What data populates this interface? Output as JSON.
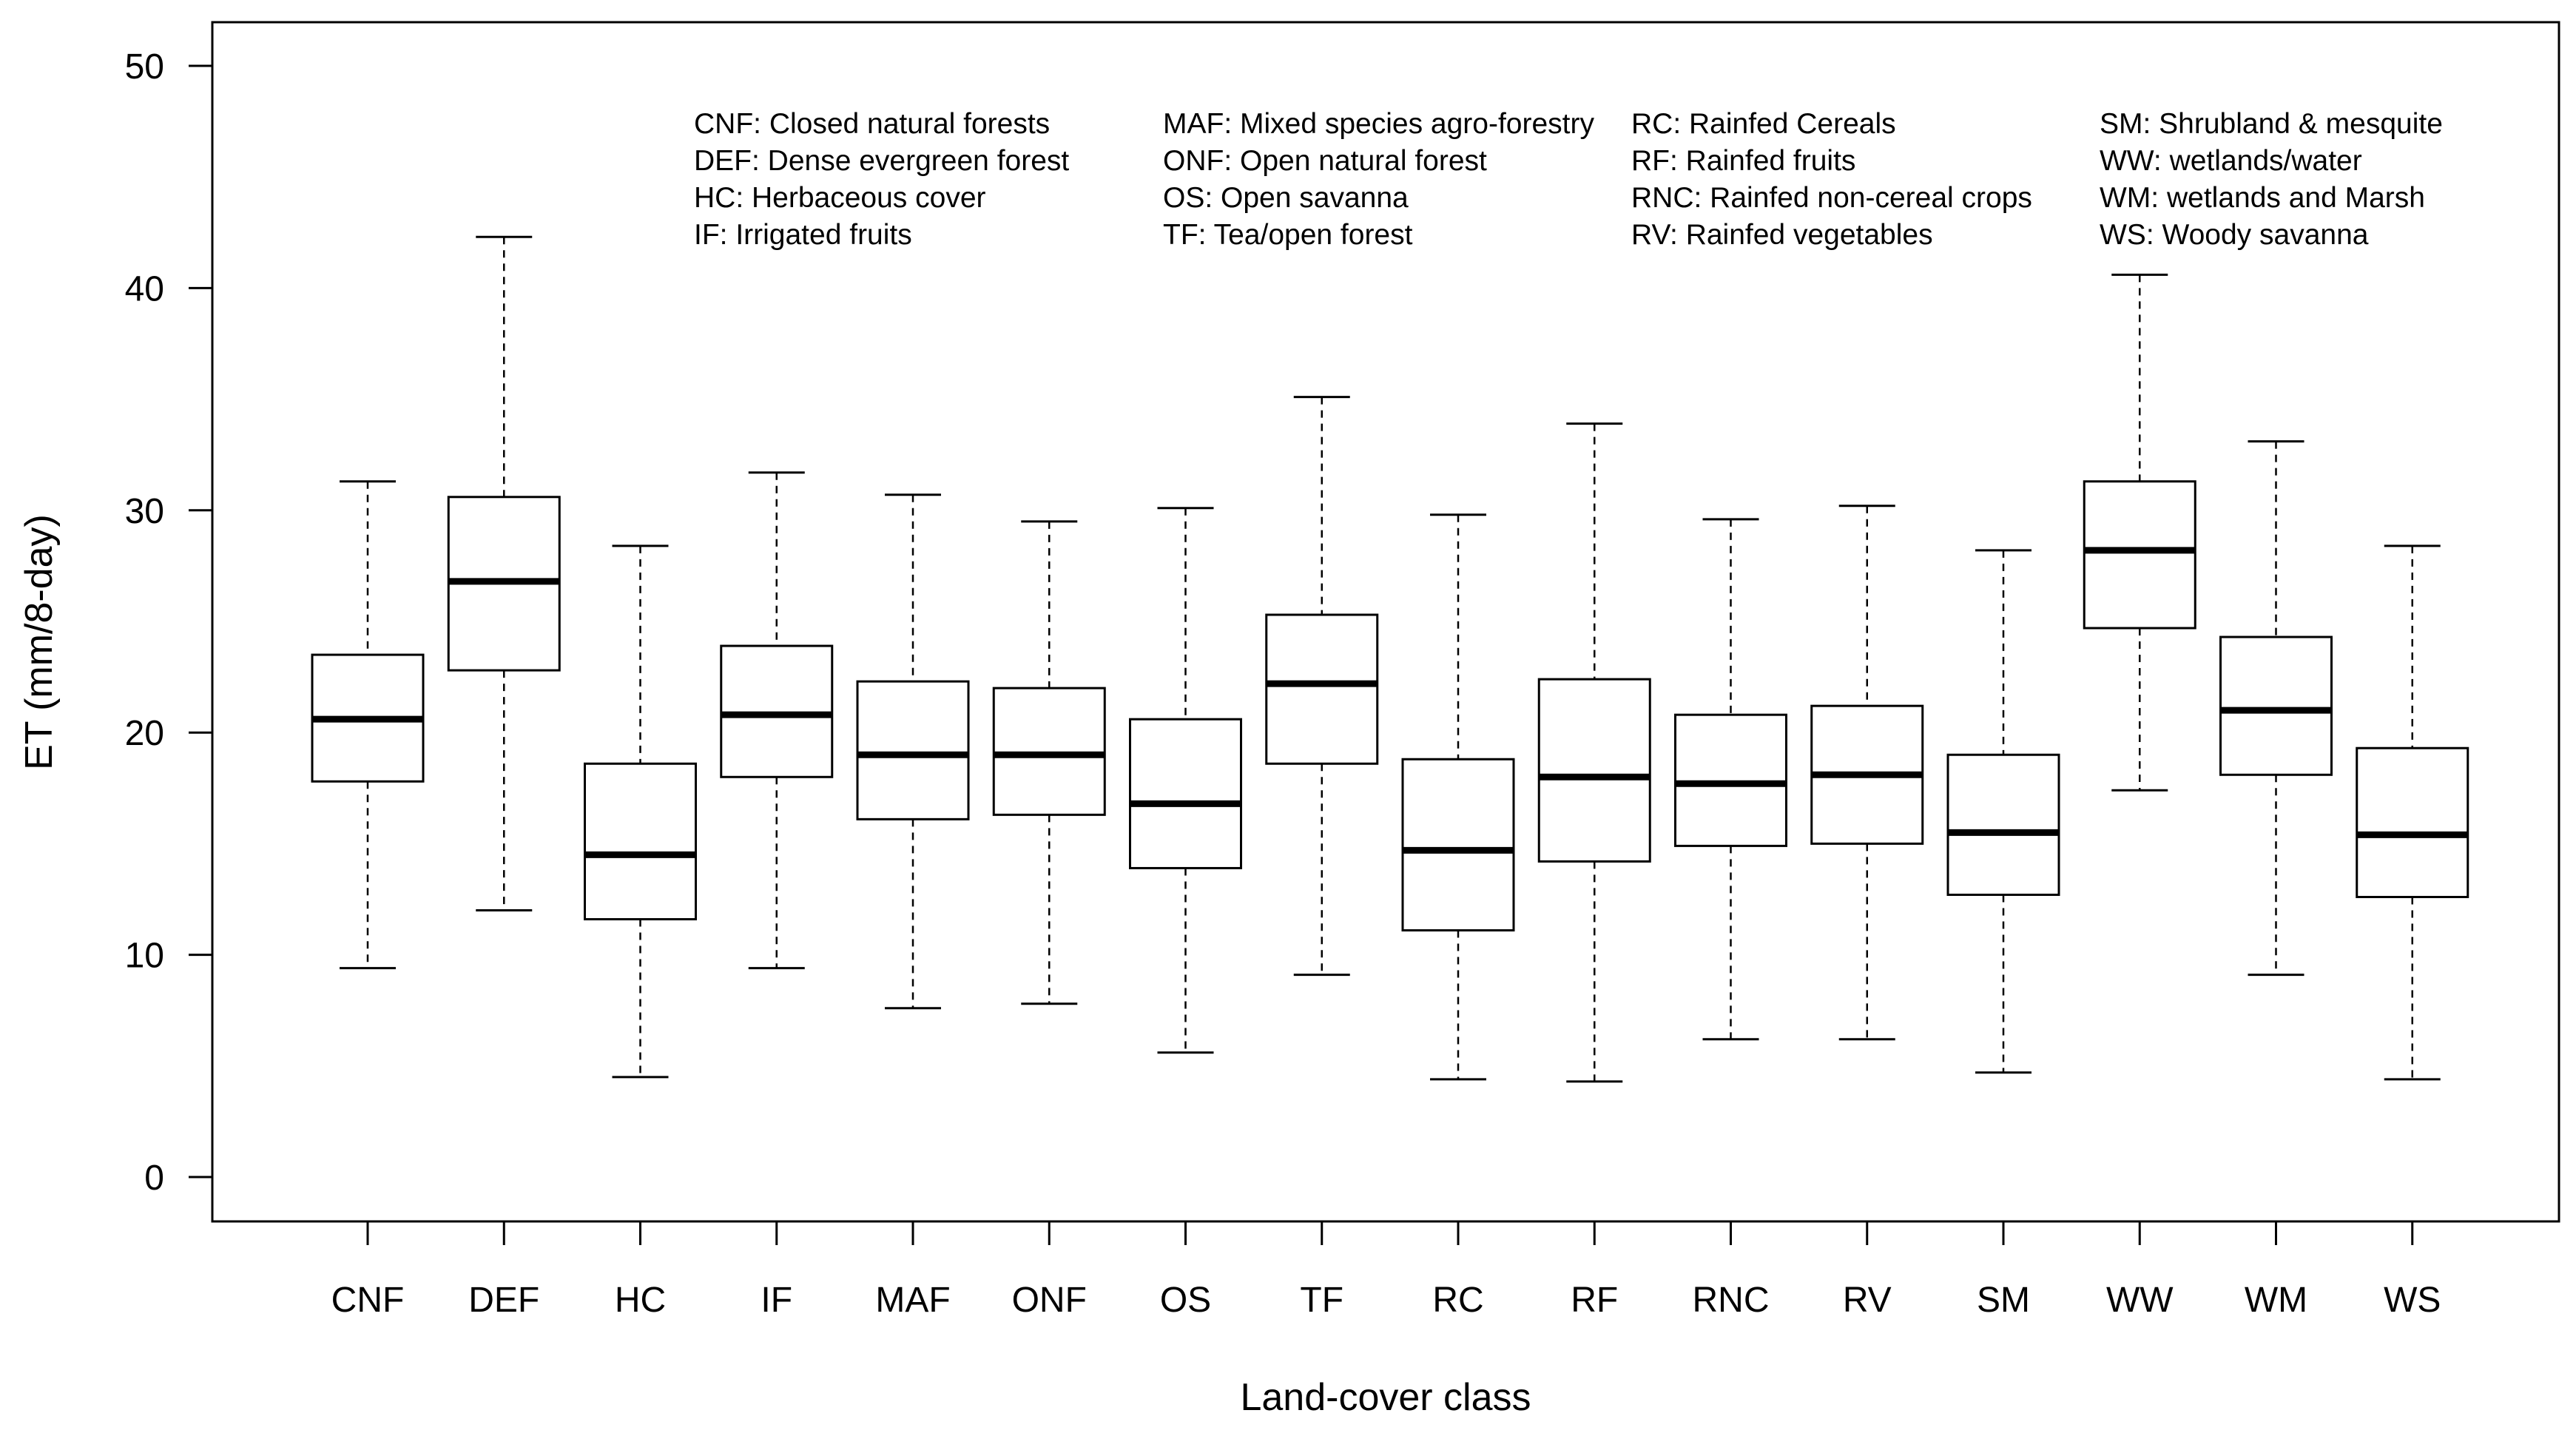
{
  "chart_data": {
    "type": "boxplot",
    "title": "",
    "xlabel": "Land-cover class",
    "ylabel": "ET (mm/8-day)",
    "ylim": [
      -2,
      52
    ],
    "yticks": [
      0,
      10,
      20,
      30,
      40,
      50
    ],
    "categories": [
      "CNF",
      "DEF",
      "HC",
      "IF",
      "MAF",
      "ONF",
      "OS",
      "TF",
      "RC",
      "RF",
      "RNC",
      "RV",
      "SM",
      "WW",
      "WM",
      "WS"
    ],
    "boxes": [
      {
        "label": "CNF",
        "min": 9.4,
        "q1": 17.8,
        "median": 20.6,
        "q3": 23.5,
        "max": 31.3
      },
      {
        "label": "DEF",
        "min": 12.0,
        "q1": 22.8,
        "median": 26.8,
        "q3": 30.6,
        "max": 42.3
      },
      {
        "label": "HC",
        "min": 4.5,
        "q1": 11.6,
        "median": 14.5,
        "q3": 18.6,
        "max": 28.4
      },
      {
        "label": "IF",
        "min": 9.4,
        "q1": 18.0,
        "median": 20.8,
        "q3": 23.9,
        "max": 31.7
      },
      {
        "label": "MAF",
        "min": 7.6,
        "q1": 16.1,
        "median": 19.0,
        "q3": 22.3,
        "max": 30.7
      },
      {
        "label": "ONF",
        "min": 7.8,
        "q1": 16.3,
        "median": 19.0,
        "q3": 22.0,
        "max": 29.5
      },
      {
        "label": "OS",
        "min": 5.6,
        "q1": 13.9,
        "median": 16.8,
        "q3": 20.6,
        "max": 30.1
      },
      {
        "label": "TF",
        "min": 9.1,
        "q1": 18.6,
        "median": 22.2,
        "q3": 25.3,
        "max": 35.1
      },
      {
        "label": "RC",
        "min": 4.4,
        "q1": 11.1,
        "median": 14.7,
        "q3": 18.8,
        "max": 29.8
      },
      {
        "label": "RF",
        "min": 4.3,
        "q1": 14.2,
        "median": 18.0,
        "q3": 22.4,
        "max": 33.9
      },
      {
        "label": "RNC",
        "min": 6.2,
        "q1": 14.9,
        "median": 17.7,
        "q3": 20.8,
        "max": 29.6
      },
      {
        "label": "RV",
        "min": 6.2,
        "q1": 15.0,
        "median": 18.1,
        "q3": 21.2,
        "max": 30.2
      },
      {
        "label": "SM",
        "min": 4.7,
        "q1": 12.7,
        "median": 15.5,
        "q3": 19.0,
        "max": 28.2
      },
      {
        "label": "WW",
        "min": 17.4,
        "q1": 24.7,
        "median": 28.2,
        "q3": 31.3,
        "max": 40.6
      },
      {
        "label": "WM",
        "min": 9.1,
        "q1": 18.1,
        "median": 21.0,
        "q3": 24.3,
        "max": 33.1
      },
      {
        "label": "WS",
        "min": 4.4,
        "q1": 12.6,
        "median": 15.4,
        "q3": 19.3,
        "max": 28.4
      }
    ],
    "legend": {
      "placement": "top",
      "columns": [
        [
          "CNF: Closed natural forests",
          "DEF: Dense evergreen forest",
          "HC: Herbaceous cover",
          "IF: Irrigated fruits"
        ],
        [
          "MAF: Mixed species agro-forestry",
          "ONF: Open natural forest",
          "OS: Open savanna",
          "TF: Tea/open forest"
        ],
        [
          "RC: Rainfed Cereals",
          "RF: Rainfed fruits",
          "RNC: Rainfed non-cereal crops",
          "RV: Rainfed vegetables"
        ],
        [
          "SM: Shrubland & mesquite",
          "WW: wetlands/water",
          "WM: wetlands and Marsh",
          "WS: Woody savanna"
        ]
      ]
    }
  }
}
